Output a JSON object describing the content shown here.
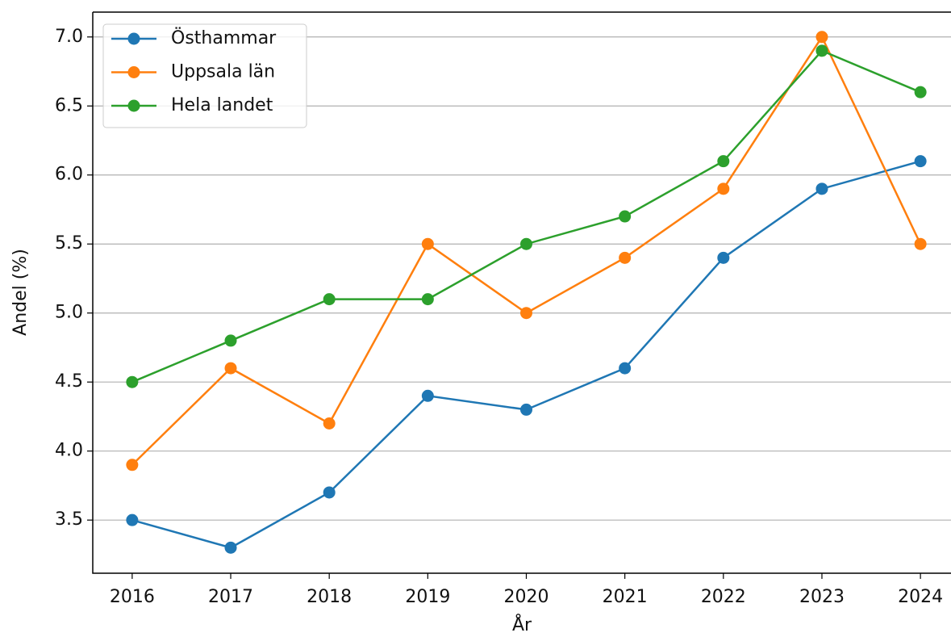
{
  "chart_data": {
    "type": "line",
    "x_label": "År",
    "y_label": "Andel (%)",
    "x": [
      2016,
      2017,
      2018,
      2019,
      2020,
      2021,
      2022,
      2023,
      2024
    ],
    "series": [
      {
        "name": "Östhammar",
        "color": "#1f77b4",
        "values": [
          3.5,
          3.3,
          3.7,
          4.4,
          4.3,
          4.6,
          5.4,
          5.9,
          6.1
        ]
      },
      {
        "name": "Uppsala län",
        "color": "#ff7f0e",
        "values": [
          3.9,
          4.6,
          4.2,
          5.5,
          5.0,
          5.4,
          5.9,
          7.0,
          5.5
        ]
      },
      {
        "name": "Hela landet",
        "color": "#2ca02c",
        "values": [
          4.5,
          4.8,
          5.1,
          5.1,
          5.5,
          5.7,
          6.1,
          6.9,
          6.6
        ]
      }
    ],
    "xlim": [
      2015.6,
      2024.31
    ],
    "xticks": [
      2016,
      2017,
      2018,
      2019,
      2020,
      2021,
      2022,
      2023,
      2024
    ],
    "ylim": [
      3.115,
      7.18
    ],
    "yticks": [
      3.5,
      {
        "value": 4,
        "label": "4.0"
      },
      4.5,
      {
        "value": 5,
        "label": "5.0"
      },
      5.5,
      {
        "value": 6,
        "label": "6.0"
      },
      6.5,
      {
        "value": 7,
        "label": "7.0"
      }
    ],
    "grid": "y",
    "legend": "upper left"
  }
}
